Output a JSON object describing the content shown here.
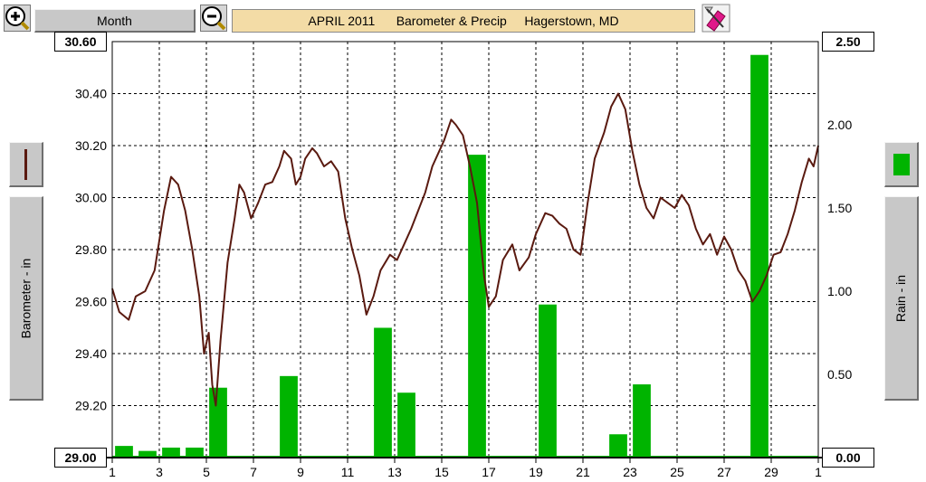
{
  "toolbar": {
    "zoom_in_icon": "magnifier-plus-icon",
    "zoom_out_icon": "magnifier-minus-icon",
    "period_label": "Month",
    "settings_icon": "pen-eraser-icon"
  },
  "title": {
    "month": "APRIL 2011",
    "chart": "Barometer & Precip",
    "location": "Hagerstown, MD"
  },
  "legend": {
    "left_axis_title": "Barometer - in",
    "right_axis_title": "Rain - in",
    "line_color": "#5a1a10",
    "bar_color": "#00b400"
  },
  "chart_data": {
    "type": "bar",
    "title": "APRIL 2011     Barometer & Precip     Hagerstown, MD",
    "x_ticks": [
      "1",
      "3",
      "5",
      "7",
      "9",
      "11",
      "13",
      "15",
      "17",
      "19",
      "21",
      "23",
      "25",
      "27",
      "29",
      "1"
    ],
    "x_range_days": [
      1,
      31
    ],
    "grid": true,
    "series": [
      {
        "name": "Barometer - in",
        "axis": "left",
        "type": "line",
        "color": "#5a1a10",
        "ylim": [
          29.0,
          30.6
        ],
        "y_ticks": [
          "30.60",
          "30.40",
          "30.20",
          "30.00",
          "29.80",
          "29.60",
          "29.40",
          "29.20",
          "29.00"
        ],
        "points": [
          [
            1.0,
            29.65
          ],
          [
            1.3,
            29.56
          ],
          [
            1.7,
            29.53
          ],
          [
            2.0,
            29.62
          ],
          [
            2.4,
            29.64
          ],
          [
            2.8,
            29.72
          ],
          [
            3.2,
            29.95
          ],
          [
            3.5,
            30.08
          ],
          [
            3.8,
            30.05
          ],
          [
            4.1,
            29.95
          ],
          [
            4.4,
            29.8
          ],
          [
            4.7,
            29.62
          ],
          [
            4.9,
            29.4
          ],
          [
            5.1,
            29.48
          ],
          [
            5.25,
            29.28
          ],
          [
            5.4,
            29.2
          ],
          [
            5.6,
            29.45
          ],
          [
            5.9,
            29.75
          ],
          [
            6.2,
            29.92
          ],
          [
            6.4,
            30.05
          ],
          [
            6.6,
            30.02
          ],
          [
            6.9,
            29.92
          ],
          [
            7.2,
            29.98
          ],
          [
            7.5,
            30.05
          ],
          [
            7.8,
            30.06
          ],
          [
            8.1,
            30.12
          ],
          [
            8.3,
            30.18
          ],
          [
            8.6,
            30.15
          ],
          [
            8.8,
            30.05
          ],
          [
            9.0,
            30.08
          ],
          [
            9.2,
            30.15
          ],
          [
            9.5,
            30.19
          ],
          [
            9.7,
            30.17
          ],
          [
            10.0,
            30.12
          ],
          [
            10.3,
            30.14
          ],
          [
            10.6,
            30.1
          ],
          [
            10.9,
            29.92
          ],
          [
            11.2,
            29.8
          ],
          [
            11.5,
            29.7
          ],
          [
            11.8,
            29.55
          ],
          [
            12.1,
            29.62
          ],
          [
            12.4,
            29.72
          ],
          [
            12.8,
            29.78
          ],
          [
            13.1,
            29.76
          ],
          [
            13.4,
            29.82
          ],
          [
            13.7,
            29.88
          ],
          [
            14.0,
            29.95
          ],
          [
            14.3,
            30.02
          ],
          [
            14.6,
            30.12
          ],
          [
            14.9,
            30.18
          ],
          [
            15.1,
            30.22
          ],
          [
            15.4,
            30.3
          ],
          [
            15.6,
            30.28
          ],
          [
            15.9,
            30.24
          ],
          [
            16.2,
            30.12
          ],
          [
            16.5,
            29.98
          ],
          [
            16.8,
            29.7
          ],
          [
            17.0,
            29.58
          ],
          [
            17.3,
            29.62
          ],
          [
            17.6,
            29.76
          ],
          [
            18.0,
            29.82
          ],
          [
            18.3,
            29.72
          ],
          [
            18.7,
            29.77
          ],
          [
            19.0,
            29.86
          ],
          [
            19.4,
            29.94
          ],
          [
            19.7,
            29.93
          ],
          [
            20.0,
            29.9
          ],
          [
            20.3,
            29.88
          ],
          [
            20.6,
            29.8
          ],
          [
            20.9,
            29.78
          ],
          [
            21.2,
            29.98
          ],
          [
            21.5,
            30.15
          ],
          [
            21.9,
            30.25
          ],
          [
            22.2,
            30.35
          ],
          [
            22.5,
            30.4
          ],
          [
            22.8,
            30.34
          ],
          [
            23.1,
            30.18
          ],
          [
            23.4,
            30.05
          ],
          [
            23.7,
            29.96
          ],
          [
            24.0,
            29.92
          ],
          [
            24.3,
            30.0
          ],
          [
            24.6,
            29.98
          ],
          [
            24.9,
            29.96
          ],
          [
            25.2,
            30.01
          ],
          [
            25.5,
            29.97
          ],
          [
            25.8,
            29.88
          ],
          [
            26.1,
            29.82
          ],
          [
            26.4,
            29.86
          ],
          [
            26.7,
            29.78
          ],
          [
            27.0,
            29.85
          ],
          [
            27.3,
            29.8
          ],
          [
            27.6,
            29.72
          ],
          [
            27.9,
            29.68
          ],
          [
            28.2,
            29.6
          ],
          [
            28.5,
            29.64
          ],
          [
            28.8,
            29.7
          ],
          [
            29.1,
            29.78
          ],
          [
            29.4,
            29.79
          ],
          [
            29.7,
            29.86
          ],
          [
            30.0,
            29.95
          ],
          [
            30.3,
            30.06
          ],
          [
            30.6,
            30.15
          ],
          [
            30.8,
            30.12
          ],
          [
            31.0,
            30.2
          ]
        ]
      },
      {
        "name": "Rain - in",
        "axis": "right",
        "type": "bar",
        "color": "#00b400",
        "ylim": [
          0.0,
          2.5
        ],
        "y_ticks": [
          "2.50",
          "2.00",
          "1.50",
          "1.00",
          "0.50",
          "0.00"
        ],
        "bars": [
          {
            "day": 1,
            "value": 0.07
          },
          {
            "day": 2,
            "value": 0.04
          },
          {
            "day": 3,
            "value": 0.06
          },
          {
            "day": 4,
            "value": 0.06
          },
          {
            "day": 5,
            "value": 0.42
          },
          {
            "day": 8,
            "value": 0.49
          },
          {
            "day": 12,
            "value": 0.78
          },
          {
            "day": 13,
            "value": 0.39
          },
          {
            "day": 16,
            "value": 1.82
          },
          {
            "day": 19,
            "value": 0.92
          },
          {
            "day": 22,
            "value": 0.14
          },
          {
            "day": 23,
            "value": 0.44
          },
          {
            "day": 28,
            "value": 2.42
          }
        ]
      }
    ]
  }
}
